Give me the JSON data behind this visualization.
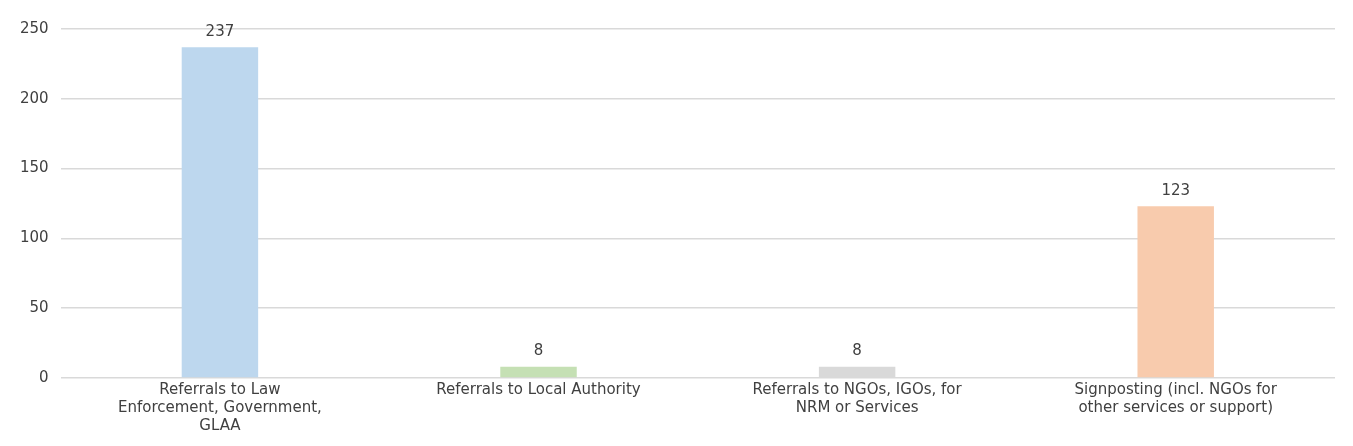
{
  "chart_data": {
    "type": "bar",
    "categories": [
      "Referrals to Law Enforcement, Government, GLAA",
      "Referrals to Local Authority",
      "Referrals to NGOs, IGOs, for NRM or Services",
      "Signposting (incl. NGOs for other services or support)"
    ],
    "values": [
      237,
      8,
      8,
      123
    ],
    "colors": [
      "#bdd7ee",
      "#c5e0b4",
      "#d9d9d9",
      "#f8cbad"
    ],
    "ylim": [
      0,
      250
    ],
    "yticks": [
      0,
      50,
      100,
      150,
      200,
      250
    ],
    "grid": "y",
    "data_labels": true,
    "legend": false
  }
}
